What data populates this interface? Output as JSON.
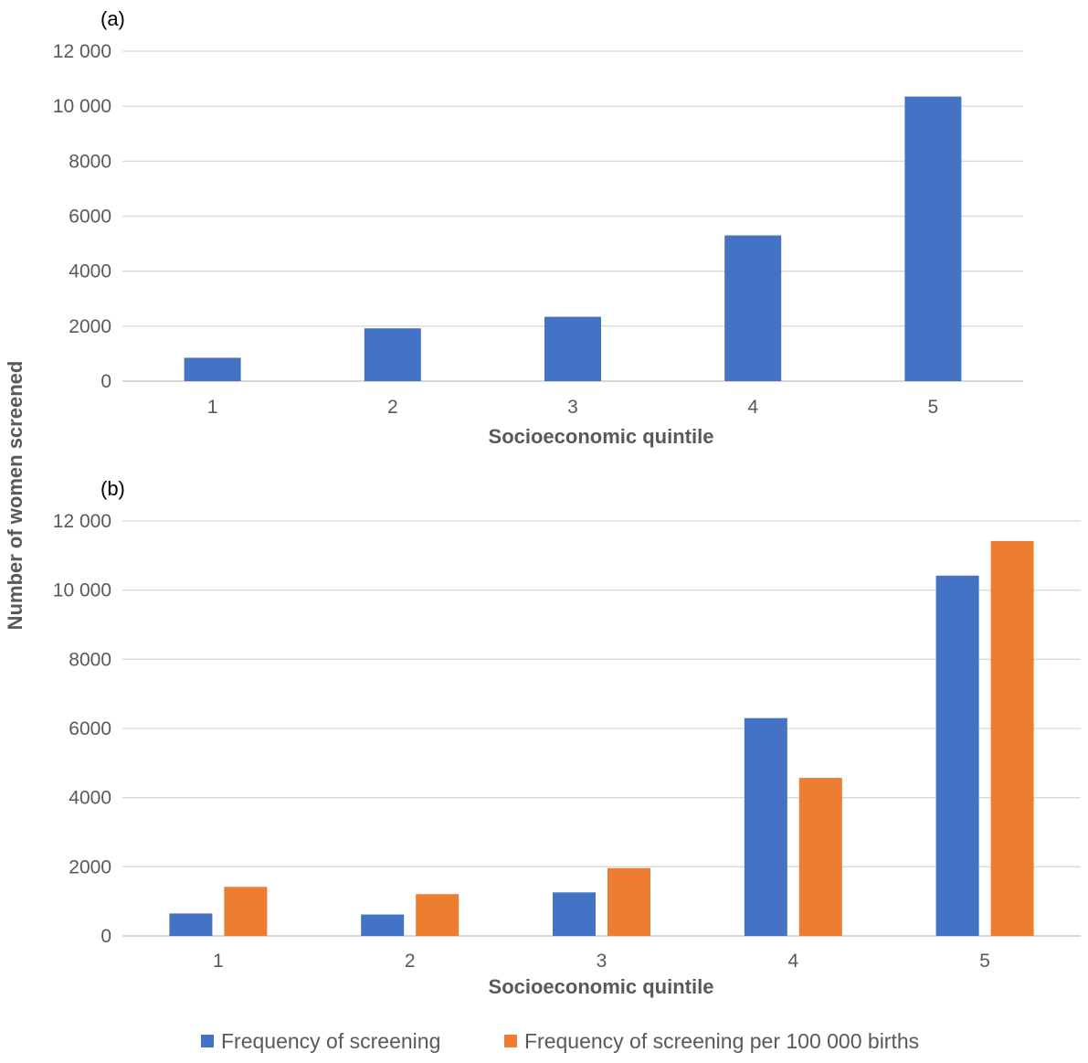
{
  "chart_data": [
    {
      "type": "bar",
      "panel_label": "(a)",
      "categories": [
        "1",
        "2",
        "3",
        "4",
        "5"
      ],
      "series": [
        {
          "name": "Frequency of screening",
          "color": "#4472c4",
          "values": [
            850,
            1920,
            2340,
            5300,
            10350
          ]
        }
      ],
      "xlabel": "Socioeconomic quintile",
      "ylabel": "Number of women screened",
      "ylim": [
        0,
        12000
      ],
      "yticks": [
        "0",
        "2000",
        "4000",
        "6000",
        "8000",
        "10 000",
        "12 000"
      ],
      "grid": true
    },
    {
      "type": "bar",
      "panel_label": "(b)",
      "categories": [
        "1",
        "2",
        "3",
        "4",
        "5"
      ],
      "series": [
        {
          "name": "Frequency of screening",
          "color": "#4472c4",
          "values": [
            650,
            620,
            1260,
            6300,
            10420
          ]
        },
        {
          "name": "Frequency of screening per 100 000 births",
          "color": "#ed7d31",
          "values": [
            1420,
            1210,
            1960,
            4570,
            11420
          ]
        }
      ],
      "xlabel": "Socioeconomic quintile",
      "ylabel": "Number of women screened",
      "ylim": [
        0,
        12000
      ],
      "yticks": [
        "0",
        "2000",
        "4000",
        "6000",
        "8000",
        "10 000",
        "12 000"
      ],
      "grid": true
    }
  ],
  "shared_ylabel": "Number of women screened",
  "legend": {
    "position": "bottom",
    "items": [
      {
        "label": "Frequency of screening",
        "color": "#4472c4"
      },
      {
        "label": "Frequency of screening per 100 000 births",
        "color": "#ed7d31"
      }
    ]
  }
}
